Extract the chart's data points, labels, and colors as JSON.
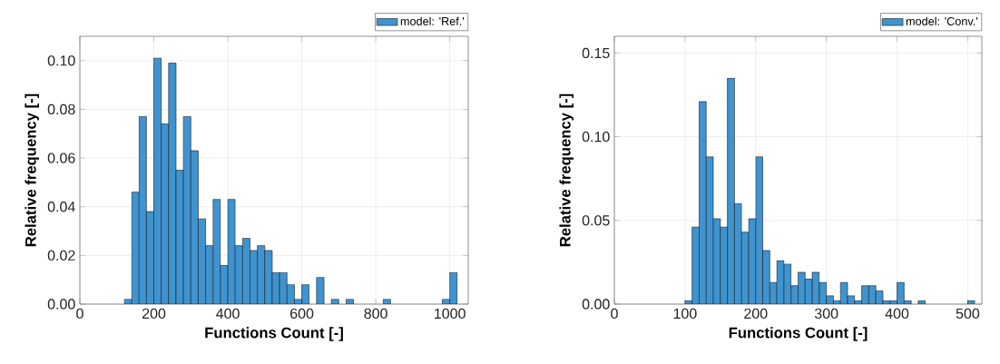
{
  "chart_data": [
    {
      "type": "histogram",
      "xlabel": "Functions Count [-]",
      "ylabel": "Relative frequency [-]",
      "bins": [
        120,
        140,
        160,
        180,
        200,
        220,
        240,
        260,
        280,
        300,
        320,
        340,
        360,
        380,
        400,
        420,
        440,
        460,
        480,
        500,
        520,
        540,
        560,
        580,
        600,
        620,
        640,
        660,
        680,
        700,
        720,
        740,
        760,
        780,
        800,
        820,
        840,
        860,
        880,
        900,
        920,
        940,
        960,
        980,
        1000,
        1020
      ],
      "series": [
        {
          "name": "model: 'Ref.'",
          "color": "#3e94d1",
          "values": [
            0.002,
            0.046,
            0.077,
            0.038,
            0.101,
            0.074,
            0.099,
            0.055,
            0.077,
            0.063,
            0.035,
            0.024,
            0.043,
            0.016,
            0.043,
            0.024,
            0.027,
            0.022,
            0.024,
            0.022,
            0.013,
            0.013,
            0.008,
            0.002,
            0.008,
            0,
            0.011,
            0,
            0.002,
            0,
            0.002,
            0,
            0,
            0,
            0,
            0.002,
            0,
            0,
            0,
            0,
            0,
            0,
            0,
            0.002,
            0.013
          ]
        }
      ],
      "xlim": [
        0,
        1050
      ],
      "ylim": [
        0,
        0.11
      ],
      "xticks": [
        0,
        200,
        400,
        600,
        800,
        1000
      ],
      "yticks": [
        {
          "value": 0,
          "label": "0.00"
        },
        {
          "value": 0.02,
          "label": "0.02"
        },
        {
          "value": 0.04,
          "label": "0.04"
        },
        {
          "value": 0.06,
          "label": "0.06"
        },
        {
          "value": 0.08,
          "label": "0.08"
        },
        {
          "value": 0.1,
          "label": "0.10"
        }
      ],
      "grid": true,
      "legend": "top right"
    },
    {
      "type": "histogram",
      "xlabel": "Functions Count [-]",
      "ylabel": "Relative frequency [-]",
      "bins": [
        100,
        110,
        120,
        130,
        140,
        150,
        160,
        170,
        180,
        190,
        200,
        210,
        220,
        230,
        240,
        250,
        260,
        270,
        280,
        290,
        300,
        310,
        320,
        330,
        340,
        350,
        360,
        370,
        380,
        390,
        400,
        410,
        420,
        430,
        440,
        450,
        460,
        470,
        480,
        490,
        500,
        510
      ],
      "series": [
        {
          "name": "model: 'Conv.'",
          "color": "#3e94d1",
          "values": [
            0.002,
            0.046,
            0.121,
            0.088,
            0.051,
            0.046,
            0.135,
            0.06,
            0.043,
            0.051,
            0.088,
            0.032,
            0.013,
            0.026,
            0.024,
            0.011,
            0.019,
            0.015,
            0.019,
            0.013,
            0.005,
            0.002,
            0.013,
            0.005,
            0.002,
            0.011,
            0.011,
            0.008,
            0.002,
            0.002,
            0.013,
            0.002,
            0,
            0.002,
            0,
            0,
            0,
            0,
            0,
            0,
            0.002
          ]
        }
      ],
      "xlim": [
        0,
        520
      ],
      "ylim": [
        0,
        0.16
      ],
      "xticks": [
        0,
        100,
        200,
        300,
        400,
        500
      ],
      "yticks": [
        {
          "value": 0,
          "label": "0.00"
        },
        {
          "value": 0.05,
          "label": "0.05"
        },
        {
          "value": 0.1,
          "label": "0.10"
        },
        {
          "value": 0.15,
          "label": "0.15"
        }
      ],
      "grid": true,
      "legend": "top right"
    }
  ]
}
